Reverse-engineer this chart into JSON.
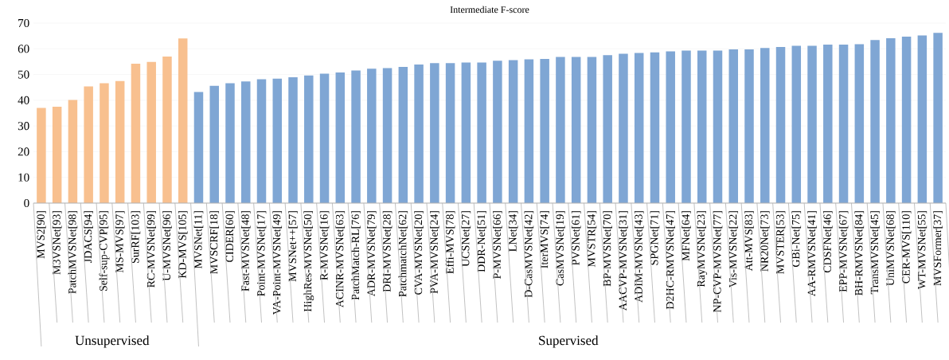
{
  "chart_data": {
    "type": "bar",
    "title": "Intermediate F-score",
    "categories": [
      "MVS2[90]",
      "M3VSNet[93]",
      "PatchMVSNet[98]",
      "JDACS[94]",
      "Self-sup-CVP[95]",
      "MS-MVS[97]",
      "SurRF[103]",
      "RC-MVSNet[99]",
      "U-MVSNet[96]",
      "KD-MVS[105]",
      "MVSNet[11]",
      "MVSCRF[18]",
      "CIDER[60]",
      "Fast-MVSNet[48]",
      "Point-MVSNet[17]",
      "VA-Point-MVSNet[49]",
      "MVSNet++[57]",
      "HighRes-MVSNet[50]",
      "R-MVSNet[16]",
      "ACINR-MVSNet[63]",
      "PatchMatch-RL[76]",
      "ADR-MVSNet[79]",
      "DRI-MVSNet[28]",
      "PatchmatchNet[62]",
      "CVA-MVSNet[20]",
      "PVA-MVSNet[24]",
      "Effi-MVS[78]",
      "UCSNet[27]",
      "DDR-Net[51]",
      "P-MVSNet[66]",
      "LNet[34]",
      "D-CasMVSNet[42]",
      "IterMVS[74]",
      "CasMVSNet[19]",
      "PVSNet[61]",
      "MVSTR[54]",
      "BP-MVSNet[70]",
      "AACVP-MVSNet[31]",
      "ADIM-MVSNet[43]",
      "SPGNet[71]",
      "D2HC-RMVSNet[47]",
      "MFNet[64]",
      "RayMVSNet[23]",
      "NP-CVP-MVSNet[77]",
      "Vis-MVSNet[22]",
      "Att-MVS[83]",
      "NR20Net[73]",
      "MVSTER[53]",
      "GBi-Net[75]",
      "AA-RMVSNet[41]",
      "CDSFNet[46]",
      "EPP-MVSNet[67]",
      "BH-RMVSNet[84]",
      "TransMVSNet[45]",
      "UniMVSNet[68]",
      "CER-MVS[110]",
      "WT-MVSNet[55]",
      "MVSFormer[37]"
    ],
    "values": [
      37.0,
      37.5,
      40.1,
      45.4,
      46.6,
      47.5,
      54.2,
      54.9,
      57.0,
      64.0,
      43.2,
      45.6,
      46.6,
      47.3,
      48.2,
      48.4,
      48.9,
      49.6,
      50.3,
      50.8,
      51.6,
      52.3,
      52.5,
      53.0,
      53.9,
      54.4,
      54.4,
      54.7,
      54.7,
      55.4,
      55.6,
      55.9,
      56.1,
      56.8,
      56.8,
      56.8,
      57.5,
      58.1,
      58.4,
      58.6,
      59.0,
      59.3,
      59.3,
      59.3,
      59.8,
      59.8,
      60.3,
      60.7,
      61.2,
      61.2,
      61.6,
      61.6,
      61.8,
      63.4,
      64.1,
      64.7,
      65.2,
      66.2
    ],
    "colors": [
      "#f8c08f",
      "#f8c08f",
      "#f8c08f",
      "#f8c08f",
      "#f8c08f",
      "#f8c08f",
      "#f8c08f",
      "#f8c08f",
      "#f8c08f",
      "#f8c08f",
      "#7fa6d4",
      "#7fa6d4",
      "#7fa6d4",
      "#7fa6d4",
      "#7fa6d4",
      "#7fa6d4",
      "#7fa6d4",
      "#7fa6d4",
      "#7fa6d4",
      "#7fa6d4",
      "#7fa6d4",
      "#7fa6d4",
      "#7fa6d4",
      "#7fa6d4",
      "#7fa6d4",
      "#7fa6d4",
      "#7fa6d4",
      "#7fa6d4",
      "#7fa6d4",
      "#7fa6d4",
      "#7fa6d4",
      "#7fa6d4",
      "#7fa6d4",
      "#7fa6d4",
      "#7fa6d4",
      "#7fa6d4",
      "#7fa6d4",
      "#7fa6d4",
      "#7fa6d4",
      "#7fa6d4",
      "#7fa6d4",
      "#7fa6d4",
      "#7fa6d4",
      "#7fa6d4",
      "#7fa6d4",
      "#7fa6d4",
      "#7fa6d4",
      "#7fa6d4",
      "#7fa6d4",
      "#7fa6d4",
      "#7fa6d4",
      "#7fa6d4",
      "#7fa6d4",
      "#7fa6d4",
      "#7fa6d4",
      "#7fa6d4",
      "#7fa6d4",
      "#7fa6d4"
    ],
    "annotations": [
      "Unsupervised",
      "Supervised"
    ],
    "ylim": [
      0,
      70
    ],
    "yticks": [
      0,
      10,
      20,
      30,
      40,
      50,
      60,
      70
    ],
    "grid": "y"
  }
}
